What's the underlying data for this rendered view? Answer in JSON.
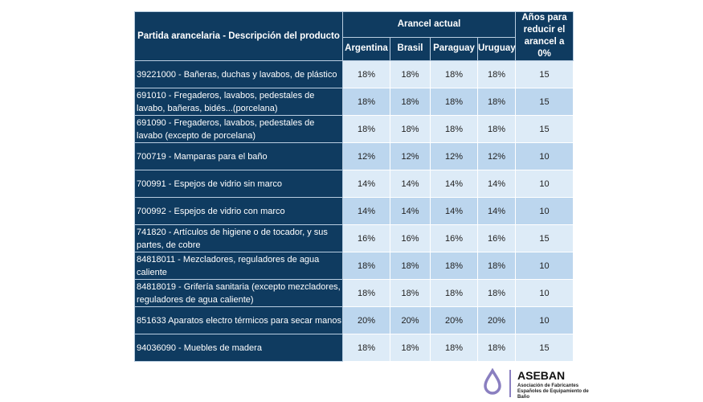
{
  "table": {
    "header": {
      "desc": "Partida arancelaria - Descripción del producto",
      "group": "Arancel actual",
      "countries": [
        "Argentina",
        "Brasil",
        "Paraguay",
        "Uruguay"
      ],
      "years": "Años para reducir el arancel a 0%"
    },
    "rows": [
      {
        "desc": "39221000 - Bañeras, duchas y lavabos, de plástico",
        "values": [
          "18%",
          "18%",
          "18%",
          "18%"
        ],
        "years": "15"
      },
      {
        "desc": "691010 - Fregaderos, lavabos, pedestales de lavabo, bañeras, bidés...(porcelana)",
        "values": [
          "18%",
          "18%",
          "18%",
          "18%"
        ],
        "years": "15"
      },
      {
        "desc": "691090 - Fregaderos, lavabos, pedestales de lavabo (excepto de porcelana)",
        "values": [
          "18%",
          "18%",
          "18%",
          "18%"
        ],
        "years": "15"
      },
      {
        "desc": "700719 - Mamparas para el baño",
        "values": [
          "12%",
          "12%",
          "12%",
          "12%"
        ],
        "years": "10"
      },
      {
        "desc": "700991 - Espejos de vidrio sin marco",
        "values": [
          "14%",
          "14%",
          "14%",
          "14%"
        ],
        "years": "10"
      },
      {
        "desc": "700992 - Espejos de vidrio con marco",
        "values": [
          "14%",
          "14%",
          "14%",
          "14%"
        ],
        "years": "10"
      },
      {
        "desc": "741820 - Artículos de higiene o de tocador, y sus partes, de cobre",
        "values": [
          "16%",
          "16%",
          "16%",
          "16%"
        ],
        "years": "15"
      },
      {
        "desc": "84818011 - Mezcladores, reguladores de agua caliente",
        "values": [
          "18%",
          "18%",
          "18%",
          "18%"
        ],
        "years": "10"
      },
      {
        "desc": "84818019 - Grifería sanitaria (excepto mezcladores, reguladores de agua caliente)",
        "values": [
          "18%",
          "18%",
          "18%",
          "18%"
        ],
        "years": "10"
      },
      {
        "desc": "851633 Aparatos electro térmicos para secar manos",
        "values": [
          "20%",
          "20%",
          "20%",
          "20%"
        ],
        "years": "10"
      },
      {
        "desc": "94036090 - Muebles de madera",
        "values": [
          "18%",
          "18%",
          "18%",
          "18%"
        ],
        "years": "15"
      }
    ]
  },
  "logo": {
    "name": "ASEBAN",
    "subtitle": "Asociación de Fabricantes Españoles de Equipamiento de Baño",
    "icon": "water-drop-icon",
    "color": "#8a7fc0"
  }
}
